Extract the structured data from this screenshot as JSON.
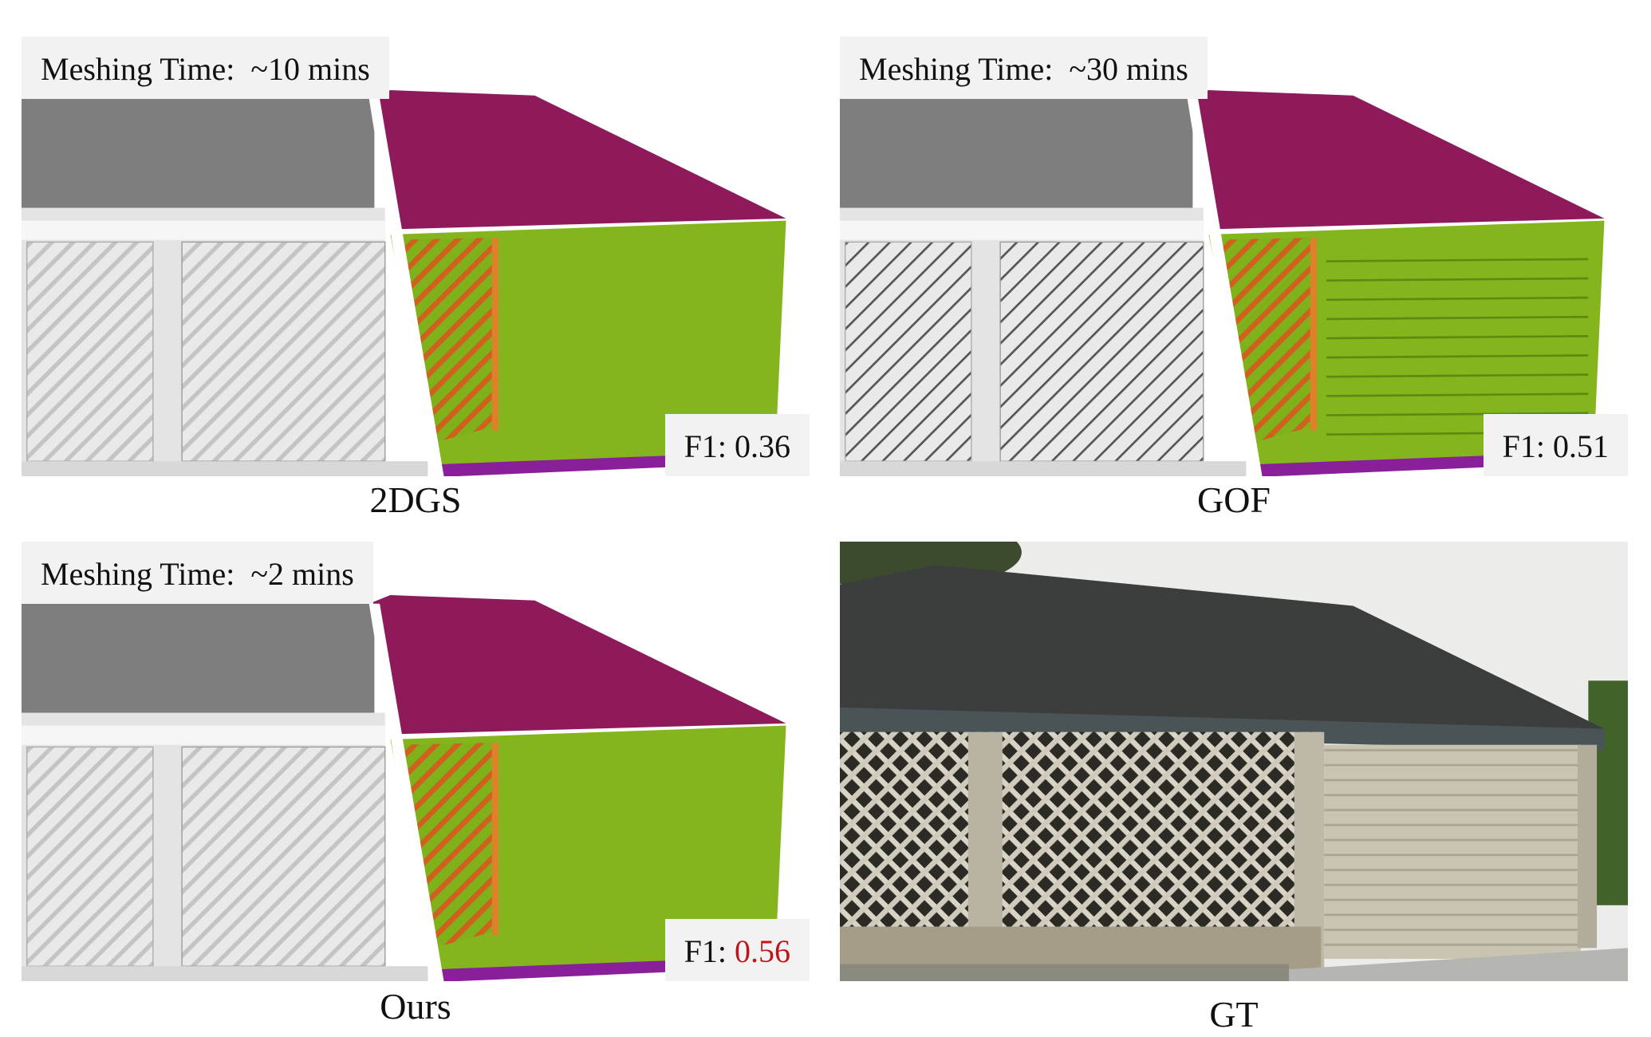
{
  "panels": [
    {
      "method": "2DGS",
      "meshing_time": "Meshing Time:  ~10 mins",
      "f1_label": "F1:",
      "f1": "0.36"
    },
    {
      "method": "GOF",
      "meshing_time": "Meshing Time:  ~30 mins",
      "f1_label": "F1:",
      "f1": "0.51"
    },
    {
      "method": "Ours",
      "meshing_time": "Meshing Time:  ~2 mins",
      "f1_label": "F1:",
      "f1": "0.56"
    },
    {
      "method": "GT"
    }
  ]
}
